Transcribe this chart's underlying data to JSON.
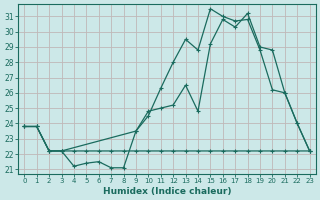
{
  "xlabel": "Humidex (Indice chaleur)",
  "background_color": "#cce8e8",
  "grid_color": "#b8d8d8",
  "line_color": "#1a6b5e",
  "xlim": [
    -0.5,
    23.5
  ],
  "ylim": [
    20.7,
    31.8
  ],
  "xticks": [
    0,
    1,
    2,
    3,
    4,
    5,
    6,
    7,
    8,
    9,
    10,
    11,
    12,
    13,
    14,
    15,
    16,
    17,
    18,
    19,
    20,
    21,
    22,
    23
  ],
  "yticks": [
    21,
    22,
    23,
    24,
    25,
    26,
    27,
    28,
    29,
    30,
    31
  ],
  "line1_x": [
    0,
    1,
    2,
    3,
    4,
    5,
    6,
    7,
    8,
    9,
    10,
    11,
    12,
    13,
    14,
    15,
    16,
    17,
    18,
    19,
    20,
    21,
    22,
    23
  ],
  "line1_y": [
    23.8,
    23.8,
    22.2,
    22.2,
    21.2,
    21.4,
    21.5,
    21.1,
    21.1,
    23.5,
    24.5,
    26.3,
    28.0,
    29.5,
    28.8,
    31.5,
    31.0,
    30.7,
    30.8,
    28.8,
    26.2,
    26.0,
    24.0,
    22.2
  ],
  "line2_x": [
    0,
    1,
    2,
    3,
    9,
    10,
    11,
    12,
    13,
    14,
    15,
    16,
    17,
    18,
    19,
    20,
    21,
    22,
    23
  ],
  "line2_y": [
    23.8,
    23.8,
    22.2,
    22.2,
    23.5,
    24.8,
    25.0,
    25.2,
    26.5,
    24.8,
    29.2,
    30.8,
    30.3,
    31.2,
    29.0,
    28.8,
    26.0,
    24.0,
    22.2
  ],
  "line3_x": [
    0,
    1,
    2,
    3,
    4,
    5,
    6,
    7,
    8,
    9,
    10,
    11,
    12,
    13,
    14,
    15,
    16,
    17,
    18,
    19,
    20,
    21,
    22,
    23
  ],
  "line3_y": [
    23.8,
    23.8,
    22.2,
    22.2,
    22.2,
    22.2,
    22.2,
    22.2,
    22.2,
    22.2,
    22.2,
    22.2,
    22.2,
    22.2,
    22.2,
    22.2,
    22.2,
    22.2,
    22.2,
    22.2,
    22.2,
    22.2,
    22.2,
    22.2
  ]
}
